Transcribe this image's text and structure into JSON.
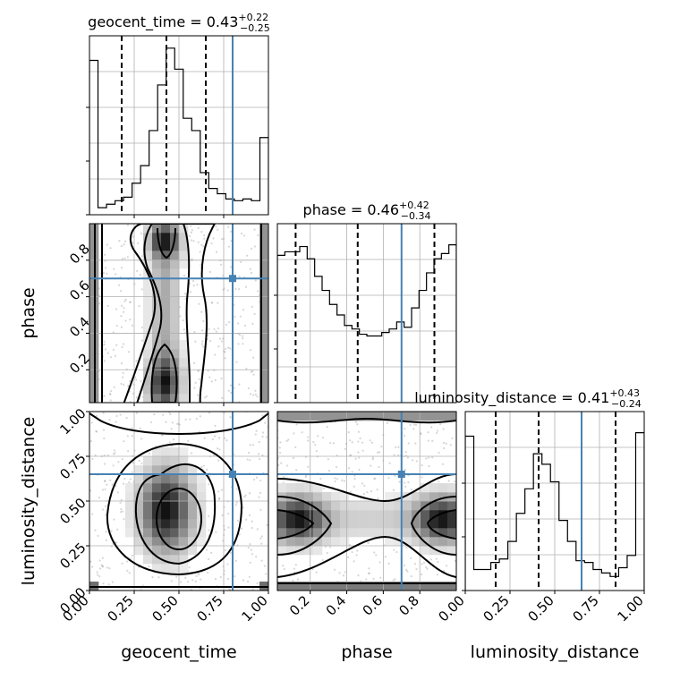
{
  "chart_data": {
    "type": "corner",
    "parameters": [
      "geocent_time",
      "phase",
      "luminosity_distance"
    ],
    "truths": {
      "geocent_time": 0.8,
      "phase": 0.7,
      "luminosity_distance": 0.65
    },
    "titles": [
      {
        "param": "geocent_time",
        "text": "geocent_time = 0.43",
        "plus": "+0.22",
        "minus": "−0.25"
      },
      {
        "param": "phase",
        "text": "phase = 0.46",
        "plus": "+0.42",
        "minus": "−0.34"
      },
      {
        "param": "luminosity_distance",
        "text": "luminosity_distance = 0.41",
        "plus": "+0.43",
        "minus": "−0.24"
      }
    ],
    "histograms": [
      {
        "param": "geocent_time",
        "range": [
          0,
          1
        ],
        "quantiles": [
          0.18,
          0.43,
          0.65
        ],
        "counts": [
          0.88,
          0.04,
          0.06,
          0.08,
          0.1,
          0.18,
          0.28,
          0.48,
          0.74,
          0.95,
          0.83,
          0.55,
          0.48,
          0.24,
          0.15,
          0.12,
          0.09,
          0.08,
          0.09,
          0.08,
          0.44
        ]
      },
      {
        "param": "phase",
        "range": [
          0,
          0.95
        ],
        "quantiles": [
          0.12,
          0.46,
          0.88
        ],
        "counts": [
          0.84,
          0.86,
          0.86,
          0.89,
          0.82,
          0.72,
          0.64,
          0.56,
          0.5,
          0.44,
          0.42,
          0.39,
          0.38,
          0.38,
          0.4,
          0.42,
          0.46,
          0.43,
          0.54,
          0.64,
          0.74,
          0.82,
          0.85,
          0.9
        ]
      },
      {
        "param": "luminosity_distance",
        "range": [
          0,
          1
        ],
        "quantiles": [
          0.17,
          0.41,
          0.84
        ],
        "counts": [
          0.88,
          0.12,
          0.12,
          0.16,
          0.18,
          0.28,
          0.44,
          0.58,
          0.78,
          0.72,
          0.62,
          0.4,
          0.28,
          0.17,
          0.16,
          0.12,
          0.1,
          0.08,
          0.13,
          0.2,
          0.9
        ]
      }
    ],
    "ticks": {
      "geocent_time": [
        "0.00",
        "0.25",
        "0.50",
        "0.75",
        "1.00"
      ],
      "phase": [
        "0.2",
        "0.4",
        "0.6",
        "0.8"
      ],
      "luminosity_distance": [
        "0.00",
        "0.25",
        "0.50",
        "0.75",
        "1.00"
      ]
    },
    "axis_labels": {
      "x": [
        "geocent_time",
        "phase",
        "luminosity_distance"
      ],
      "y": [
        "phase",
        "luminosity_distance"
      ]
    },
    "contour_levels": 4,
    "grid": true
  }
}
